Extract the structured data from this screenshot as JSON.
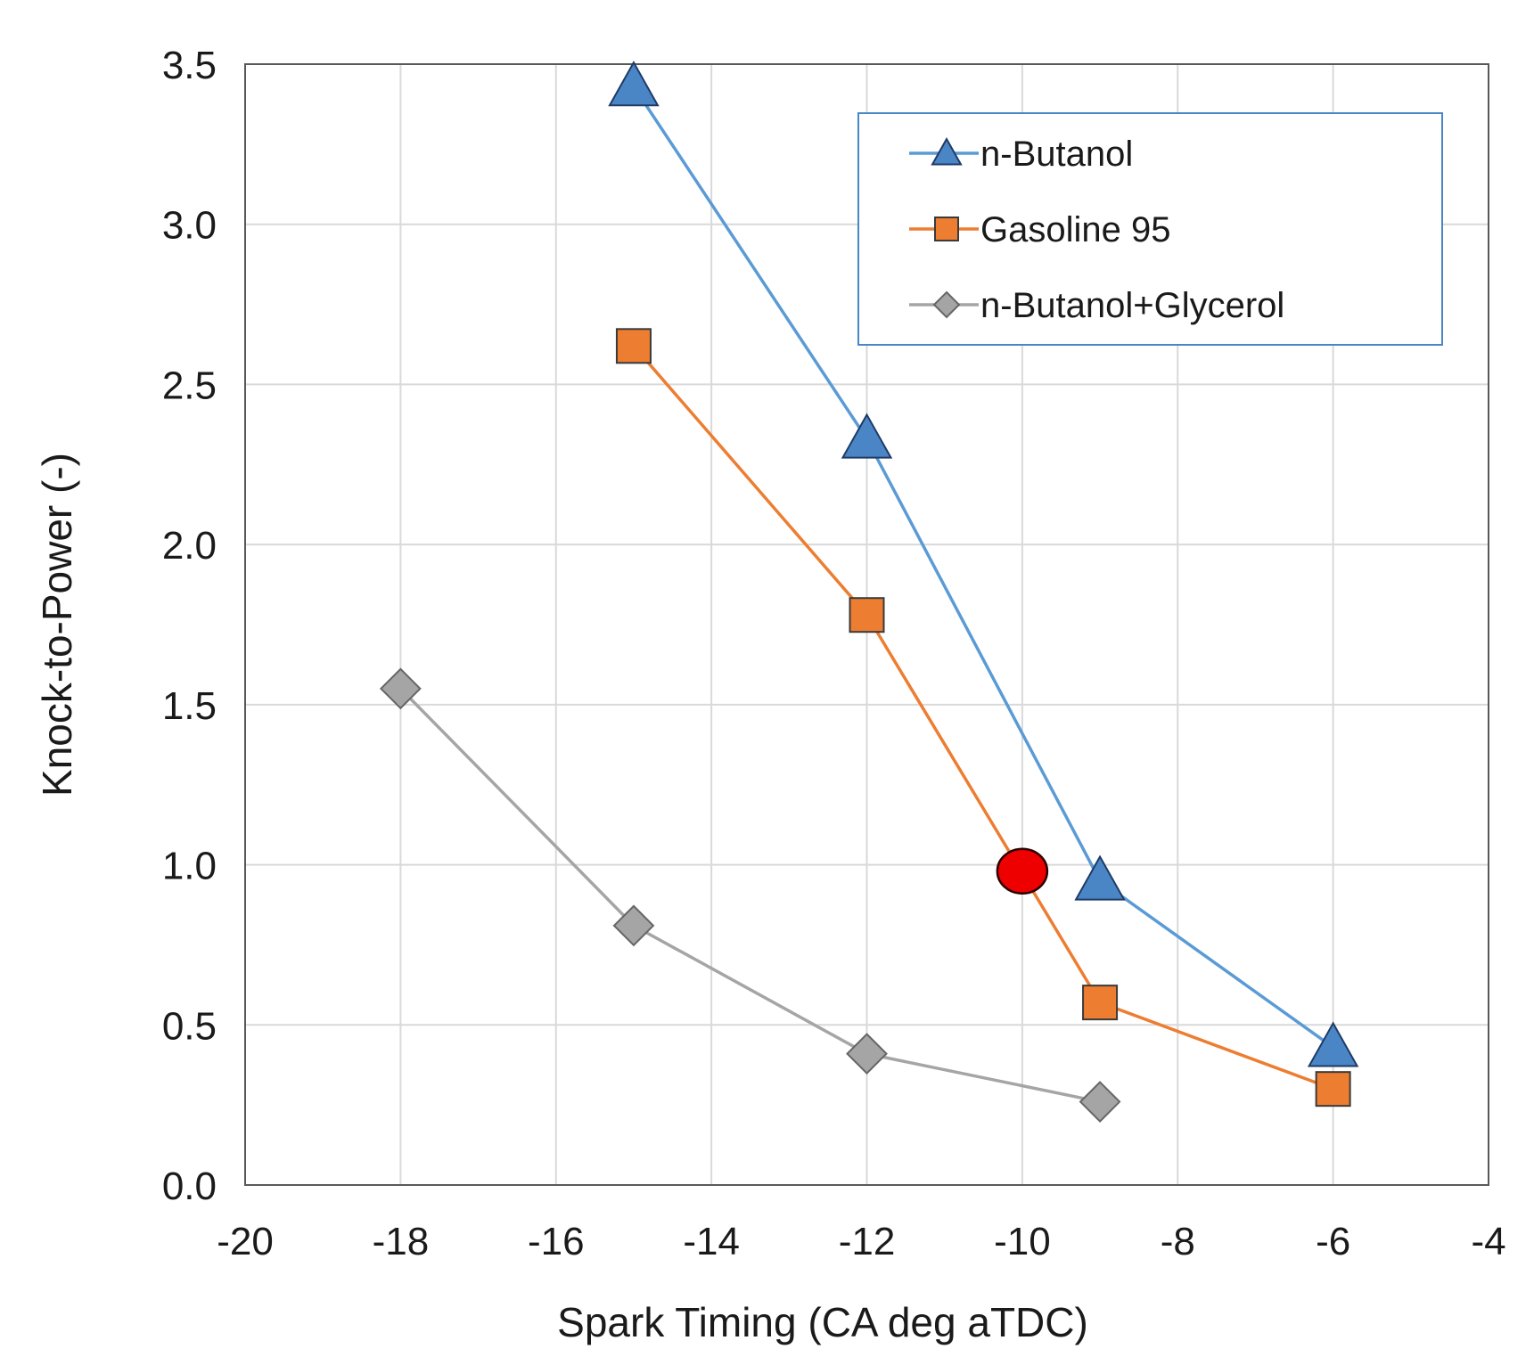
{
  "chart_data": {
    "type": "line",
    "title": "",
    "xlabel": "Spark Timing (CA deg aTDC)",
    "ylabel": "Knock-to-Power  (-)",
    "xlim": [
      -20,
      -4
    ],
    "ylim": [
      0,
      3.5
    ],
    "x_ticks": [
      -20,
      -18,
      -16,
      -14,
      -12,
      -10,
      -8,
      -6,
      -4
    ],
    "y_ticks": [
      0.0,
      0.5,
      1.0,
      1.5,
      2.0,
      2.5,
      3.0,
      3.5
    ],
    "x_tick_labels": [
      "-20",
      "-18",
      "-16",
      "-14",
      "-12",
      "-10",
      "-8",
      "-6",
      "-4"
    ],
    "y_tick_labels": [
      "0.0",
      "0.5",
      "1.0",
      "1.5",
      "2.0",
      "2.5",
      "3.0",
      "3.5"
    ],
    "grid": true,
    "legend_position": "top-right",
    "series": [
      {
        "name": "n-Butanol",
        "marker": "triangle",
        "color": "#5b9bd5",
        "fill": "#4a86c5",
        "x": [
          -15,
          -12,
          -9,
          -6
        ],
        "y": [
          3.43,
          2.33,
          0.95,
          0.43
        ]
      },
      {
        "name": "Gasoline 95",
        "marker": "square",
        "color": "#ed7d31",
        "fill": "#ed7d31",
        "x": [
          -15,
          -12,
          -9,
          -6
        ],
        "y": [
          2.62,
          1.78,
          0.57,
          0.3
        ]
      },
      {
        "name": "n-Butanol+Glycerol",
        "marker": "diamond",
        "color": "#a5a5a5",
        "fill": "#a5a5a5",
        "x": [
          -18,
          -15,
          -12,
          -9
        ],
        "y": [
          1.55,
          0.81,
          0.41,
          0.26
        ]
      }
    ],
    "annotations": [
      {
        "type": "marker",
        "shape": "circle",
        "color": "#ee0000",
        "x": -10,
        "y": 0.98
      }
    ]
  }
}
